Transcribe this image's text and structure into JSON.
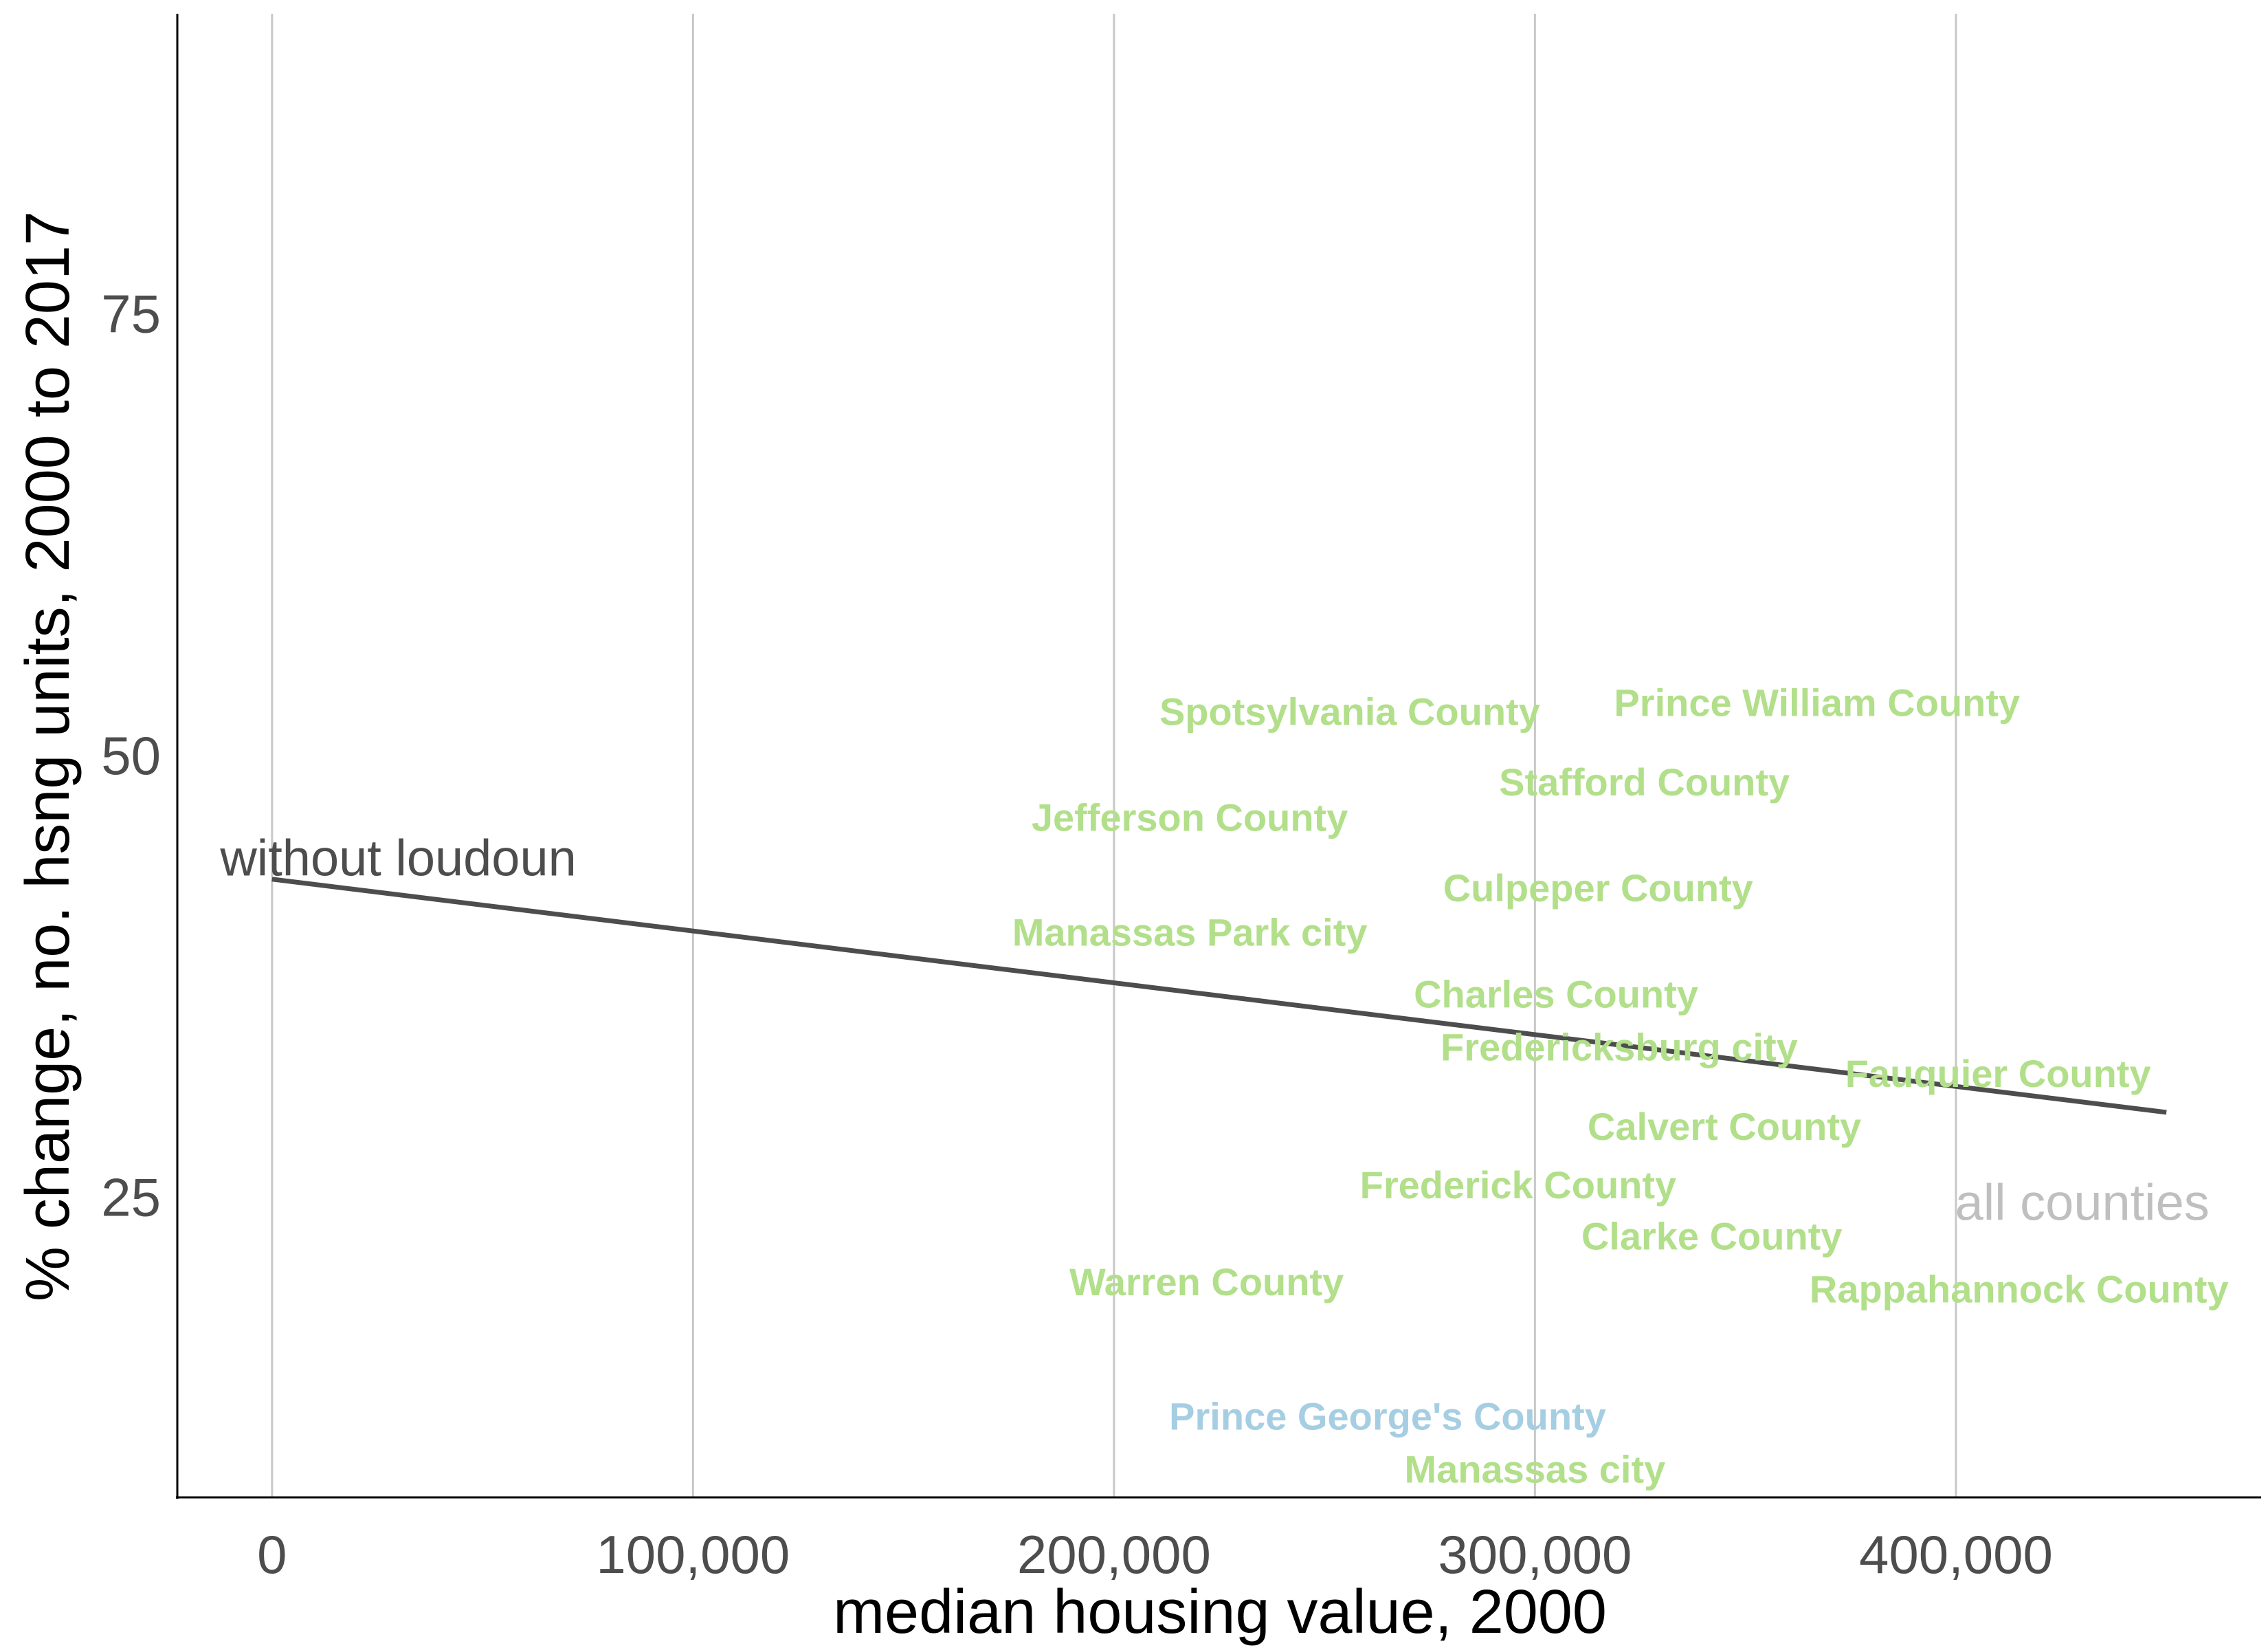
{
  "chart_data": {
    "type": "scatter",
    "title": "",
    "xlabel": "median housing value, 2000",
    "ylabel": "% change, no. hsng units, 2000 to 2017",
    "xlim": [
      -22500,
      472500
    ],
    "ylim": [
      8,
      92
    ],
    "x_ticks": [
      {
        "value": 0,
        "label": "0"
      },
      {
        "value": 100000,
        "label": "100,000"
      },
      {
        "value": 200000,
        "label": "200,000"
      },
      {
        "value": 300000,
        "label": "300,000"
      },
      {
        "value": 400000,
        "label": "400,000"
      }
    ],
    "y_ticks": [
      {
        "value": 25,
        "label": "25"
      },
      {
        "value": 50,
        "label": "50"
      },
      {
        "value": 75,
        "label": "75"
      }
    ],
    "grid": {
      "vertical": true,
      "horizontal": false
    },
    "colors": {
      "group_a": "#b2df8a",
      "group_b": "#a6cee3",
      "line": "#4d4d4d",
      "annotation_all": "#bfbfbf",
      "annotation_without": "#4d4d4d",
      "grid": "#c8c8c8"
    },
    "points": [
      {
        "name": "Spotsylvania County",
        "x": 256000,
        "y": 52.5,
        "group": "group_a"
      },
      {
        "name": "Prince William County",
        "x": 367000,
        "y": 53.0,
        "group": "group_a"
      },
      {
        "name": "Stafford County",
        "x": 326000,
        "y": 48.5,
        "group": "group_a"
      },
      {
        "name": "Jefferson County",
        "x": 218000,
        "y": 46.5,
        "group": "group_a"
      },
      {
        "name": "Culpeper County",
        "x": 315000,
        "y": 42.5,
        "group": "group_a"
      },
      {
        "name": "Manassas Park city",
        "x": 218000,
        "y": 40.0,
        "group": "group_a"
      },
      {
        "name": "Charles County",
        "x": 305000,
        "y": 36.5,
        "group": "group_a"
      },
      {
        "name": "Fredericksburg city",
        "x": 320000,
        "y": 33.5,
        "group": "group_a"
      },
      {
        "name": "Fauquier County",
        "x": 410000,
        "y": 32.0,
        "group": "group_a"
      },
      {
        "name": "Calvert County",
        "x": 345000,
        "y": 29.0,
        "group": "group_a"
      },
      {
        "name": "Frederick County",
        "x": 296000,
        "y": 25.7,
        "group": "group_a"
      },
      {
        "name": "Clarke County",
        "x": 342000,
        "y": 22.8,
        "group": "group_a"
      },
      {
        "name": "Rappahannock County",
        "x": 415000,
        "y": 19.8,
        "group": "group_a"
      },
      {
        "name": "Warren County",
        "x": 222000,
        "y": 20.2,
        "group": "group_a"
      },
      {
        "name": "Prince George's County",
        "x": 265000,
        "y": 12.6,
        "group": "group_b"
      },
      {
        "name": "Manassas city",
        "x": 300000,
        "y": 9.6,
        "group": "group_a"
      }
    ],
    "fit_lines": [
      {
        "label": "without loudoun",
        "x": [
          0,
          450000
        ],
        "y": [
          43.0,
          29.8
        ]
      }
    ],
    "annotations": [
      {
        "text": "without loudoun",
        "x": 30000,
        "y": 44.2,
        "color": "annotation_without"
      },
      {
        "text": "all counties",
        "x": 430000,
        "y": 24.7,
        "color": "annotation_all"
      }
    ]
  }
}
